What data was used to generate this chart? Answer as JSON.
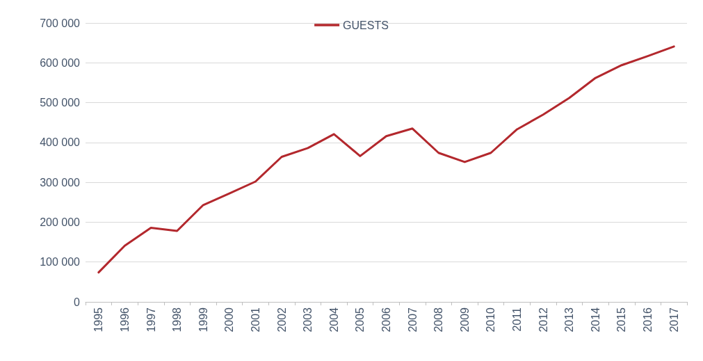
{
  "chart_data": {
    "type": "line",
    "categories": [
      "1995",
      "1996",
      "1997",
      "1998",
      "1999",
      "2000",
      "2001",
      "2002",
      "2003",
      "2004",
      "2005",
      "2006",
      "2007",
      "2008",
      "2009",
      "2010",
      "2011",
      "2012",
      "2013",
      "2014",
      "2015",
      "2016",
      "2017"
    ],
    "series": [
      {
        "name": "GUESTS",
        "color": "#b3282d",
        "values": [
          74000,
          141000,
          186000,
          178000,
          243000,
          272000,
          302000,
          364000,
          386000,
          421000,
          366000,
          416000,
          435000,
          374000,
          351000,
          374000,
          433000,
          470000,
          512000,
          562000,
          594000,
          617000,
          641000
        ]
      }
    ],
    "ylim": [
      0,
      700000
    ],
    "yticks": [
      0,
      {
        "value": 100000,
        "label": "100 000"
      },
      {
        "value": 200000,
        "label": "200 000"
      },
      {
        "value": 300000,
        "label": "300 000"
      },
      {
        "value": 400000,
        "label": "400 000"
      },
      {
        "value": 500000,
        "label": "500 000"
      },
      {
        "value": 600000,
        "label": "600 000"
      },
      {
        "value": 700000,
        "label": "700 000"
      }
    ],
    "grid": "y",
    "legend": "top",
    "marker": "none",
    "line_style": "solid"
  }
}
